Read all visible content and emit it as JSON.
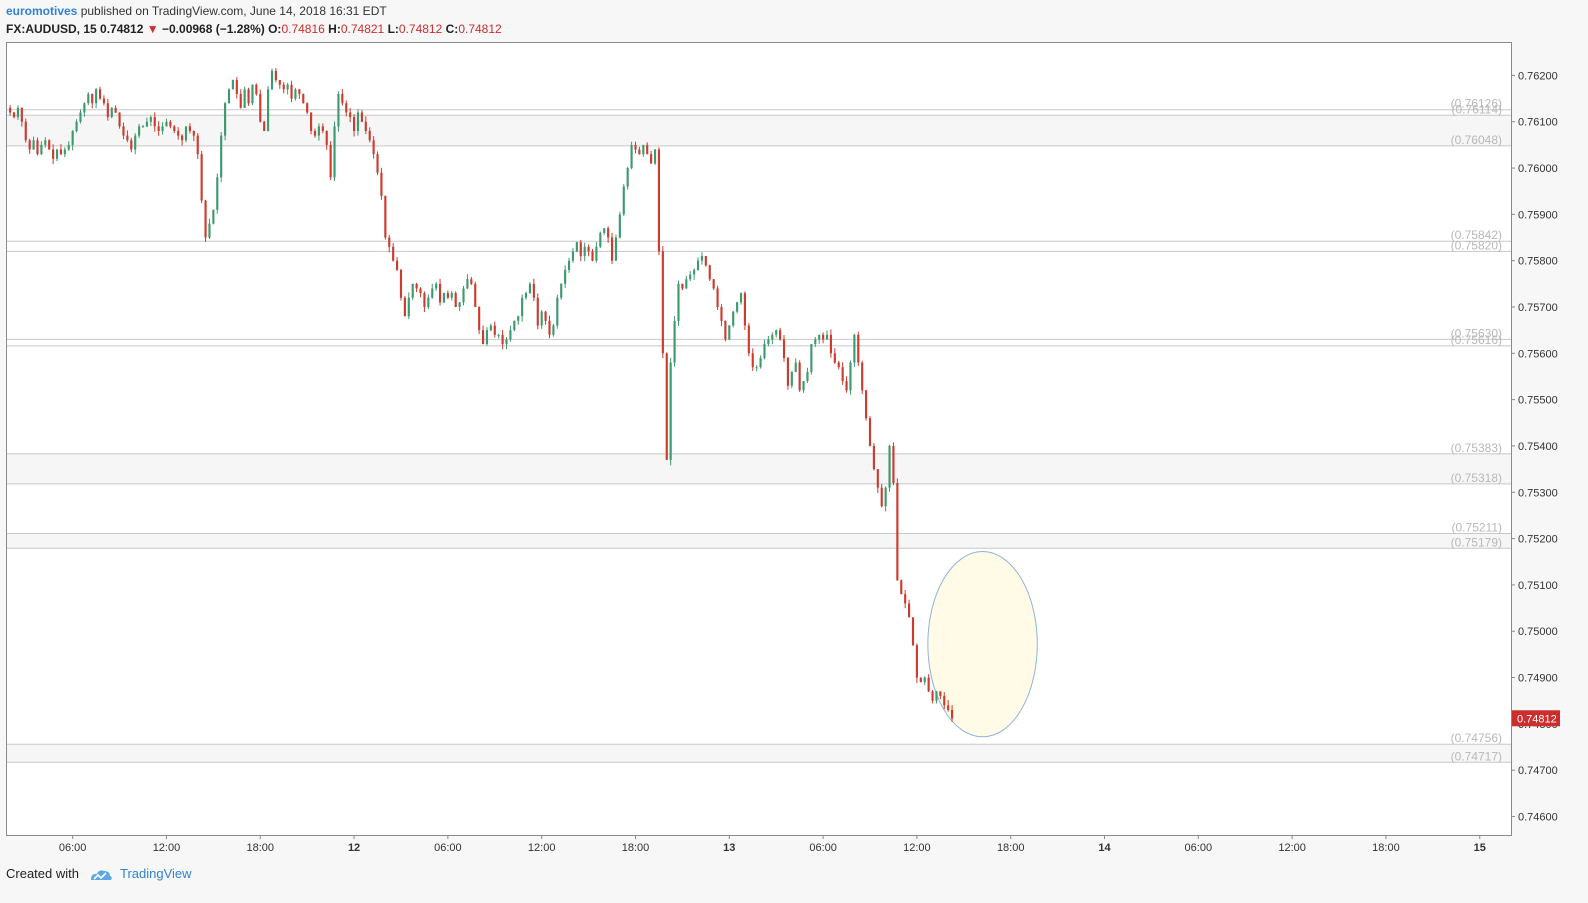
{
  "header": {
    "author": "euromotives",
    "published_text": "published on TradingView.com, June 14, 2018 16:31 EDT"
  },
  "symbol_bar": {
    "symbol": "FX:AUDUSD, 15",
    "last": "0.74812",
    "change": "−0.00968 (−1.28%)",
    "o_label": "O:",
    "o_value": "0.74816",
    "h_label": "H:",
    "h_value": "0.74821",
    "l_label": "L:",
    "l_value": "0.74812",
    "c_label": "C:",
    "c_value": "0.74812"
  },
  "footer": {
    "created_with": "Created with",
    "brand": "TradingView"
  },
  "colors": {
    "up": "#3d9a6e",
    "down": "#cc3b2f",
    "level_line": "#c8c8c8",
    "level_label": "#b8b8b8",
    "ellipse_fill": "#fffbe6",
    "ellipse_stroke": "#8fb3dd",
    "price_tag": "#cc2d2d"
  },
  "chart_data": {
    "type": "candlestick",
    "symbol": "FX:AUDUSD",
    "interval": "15",
    "y_range": [
      0.7456,
      0.7627
    ],
    "y_ticks": [
      "0.76200",
      "0.76100",
      "0.76000",
      "0.75900",
      "0.75800",
      "0.75700",
      "0.75600",
      "0.75500",
      "0.75400",
      "0.75300",
      "0.75200",
      "0.75100",
      "0.75000",
      "0.74900",
      "0.74800",
      "0.74700",
      "0.74600"
    ],
    "x_ticks": [
      "06:00",
      "12:00",
      "18:00",
      "12",
      "06:00",
      "12:00",
      "18:00",
      "13",
      "06:00",
      "12:00",
      "18:00",
      "14",
      "06:00",
      "12:00",
      "18:00",
      "15"
    ],
    "x_tick_hours": [
      6,
      12,
      18,
      24,
      30,
      36,
      42,
      48,
      54,
      60,
      66,
      72,
      78,
      84,
      90,
      96
    ],
    "x_range_hours": [
      1.8,
      98
    ],
    "horizontal_levels": [
      {
        "label": "(0.76126)",
        "price": 0.76126
      },
      {
        "label": "(0.76114)",
        "price": 0.76114
      },
      {
        "label": "(0.76048)",
        "price": 0.76048
      },
      {
        "label": "(0.75842)",
        "price": 0.75842
      },
      {
        "label": "(0.75820)",
        "price": 0.7582
      },
      {
        "label": "(0.75630)",
        "price": 0.7563
      },
      {
        "label": "(0.75616)",
        "price": 0.75616
      },
      {
        "label": "(0.75383)",
        "price": 0.75383
      },
      {
        "label": "(0.75318)",
        "price": 0.75318
      },
      {
        "label": "(0.75211)",
        "price": 0.75211
      },
      {
        "label": "(0.75179)",
        "price": 0.75179
      },
      {
        "label": "(0.74756)",
        "price": 0.74756
      },
      {
        "label": "(0.74717)",
        "price": 0.74717
      }
    ],
    "shaded_zones": [
      {
        "from": 0.76048,
        "to": 0.76114
      },
      {
        "from": 0.75318,
        "to": 0.75383
      },
      {
        "from": 0.75179,
        "to": 0.75211
      },
      {
        "from": 0.74717,
        "to": 0.74756
      }
    ],
    "last_price_tag": "0.74812",
    "ellipse": {
      "center_hour": 64.2,
      "center_price": 0.74972,
      "radius_hours": 3.5,
      "radius_price": 0.002
    },
    "path_start_hour": 2.0,
    "path_step_hours": 0.25,
    "path_closes": [
      0.7612,
      0.7611,
      0.7613,
      0.761,
      0.7606,
      0.7604,
      0.7606,
      0.7603,
      0.7605,
      0.7606,
      0.7604,
      0.7602,
      0.7604,
      0.7603,
      0.7604,
      0.7605,
      0.7608,
      0.761,
      0.7612,
      0.7614,
      0.7616,
      0.7614,
      0.7617,
      0.7615,
      0.7614,
      0.7611,
      0.7613,
      0.7612,
      0.7609,
      0.7607,
      0.7606,
      0.7604,
      0.7607,
      0.7609,
      0.7609,
      0.761,
      0.7611,
      0.7609,
      0.7608,
      0.7609,
      0.761,
      0.7609,
      0.7608,
      0.7607,
      0.7606,
      0.7609,
      0.7608,
      0.7607,
      0.7603,
      0.7593,
      0.7585,
      0.7588,
      0.7591,
      0.7598,
      0.7607,
      0.7614,
      0.7617,
      0.7619,
      0.7616,
      0.7613,
      0.7617,
      0.7614,
      0.7618,
      0.7616,
      0.761,
      0.7608,
      0.7617,
      0.7621,
      0.7619,
      0.7618,
      0.7617,
      0.7618,
      0.7615,
      0.7617,
      0.7616,
      0.7614,
      0.7612,
      0.7608,
      0.7607,
      0.7609,
      0.7608,
      0.7605,
      0.7598,
      0.7609,
      0.7616,
      0.7614,
      0.7612,
      0.7611,
      0.7608,
      0.7612,
      0.761,
      0.7608,
      0.7606,
      0.7603,
      0.7599,
      0.7594,
      0.7585,
      0.7583,
      0.758,
      0.7578,
      0.7572,
      0.7568,
      0.7572,
      0.7575,
      0.7574,
      0.7573,
      0.757,
      0.7572,
      0.7574,
      0.7575,
      0.7571,
      0.7573,
      0.7572,
      0.7573,
      0.757,
      0.7571,
      0.7574,
      0.7576,
      0.7575,
      0.757,
      0.7565,
      0.7562,
      0.7565,
      0.7566,
      0.7564,
      0.7564,
      0.7562,
      0.7563,
      0.7565,
      0.7567,
      0.7568,
      0.7572,
      0.7573,
      0.7575,
      0.7572,
      0.7566,
      0.7569,
      0.7567,
      0.7564,
      0.7566,
      0.7572,
      0.7575,
      0.7578,
      0.758,
      0.7582,
      0.7584,
      0.7581,
      0.7583,
      0.7582,
      0.758,
      0.7583,
      0.7586,
      0.7587,
      0.7585,
      0.758,
      0.7585,
      0.759,
      0.7596,
      0.76,
      0.7605,
      0.7604,
      0.7603,
      0.7605,
      0.7603,
      0.7601,
      0.7604,
      0.7582,
      0.756,
      0.7537,
      0.7558,
      0.7567,
      0.7575,
      0.7574,
      0.7576,
      0.7577,
      0.7578,
      0.758,
      0.7581,
      0.7579,
      0.7576,
      0.7574,
      0.757,
      0.7567,
      0.7563,
      0.7566,
      0.7569,
      0.7571,
      0.7573,
      0.7566,
      0.756,
      0.7557,
      0.7557,
      0.7559,
      0.7562,
      0.7563,
      0.7564,
      0.7565,
      0.7563,
      0.7559,
      0.7553,
      0.7556,
      0.7558,
      0.7552,
      0.7554,
      0.7556,
      0.7562,
      0.7563,
      0.7564,
      0.7563,
      0.7564,
      0.756,
      0.7558,
      0.7557,
      0.7554,
      0.7552,
      0.7558,
      0.7564,
      0.7558,
      0.7552,
      0.7546,
      0.754,
      0.7535,
      0.7531,
      0.7527,
      0.7531,
      0.754,
      0.7532,
      0.7511,
      0.7508,
      0.7506,
      0.7503,
      0.7497,
      0.749,
      0.7489,
      0.749,
      0.7487,
      0.7485,
      0.7487,
      0.7486,
      0.7484,
      0.7483,
      0.74812
    ]
  }
}
